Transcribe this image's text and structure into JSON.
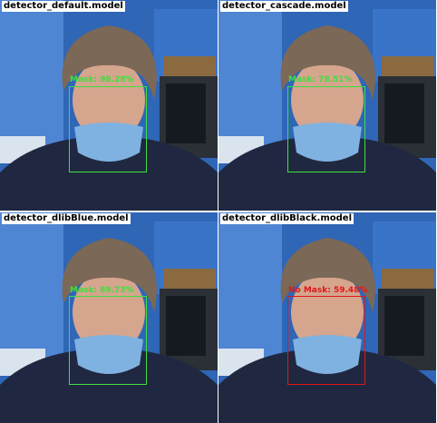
{
  "panels": [
    {
      "model": "detector_default.model",
      "label": "Mask: 98.28%",
      "status": "mask",
      "color": "#3ee03e"
    },
    {
      "model": "detector_cascade.model",
      "label": "Mask: 78.51%",
      "status": "mask",
      "color": "#3ee03e"
    },
    {
      "model": "detector_dlibBlue.model",
      "label": "Mask: 89.73%",
      "status": "mask",
      "color": "#3ee03e"
    },
    {
      "model": "detector_dlibBlack.model",
      "label": "No Mask: 59.48%",
      "status": "no-mask",
      "color": "#e01818"
    }
  ]
}
